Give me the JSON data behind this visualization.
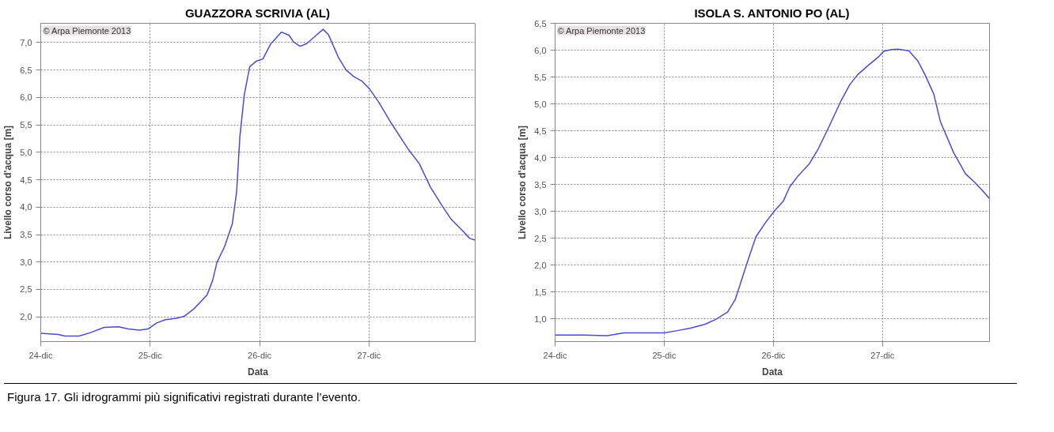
{
  "chart_data": [
    {
      "type": "line",
      "title": "GUAZZORA SCRIVIA (AL)",
      "xlabel": "Data",
      "ylabel": "Livello corso d'acqua [m]",
      "annotations": [
        "© Arpa Piemonte 2013",
        "Figura 17. Gli idrogrammi più significativi registrati durante l’evento."
      ],
      "xlim": [
        24,
        27.97
      ],
      "xticks": [
        {
          "value": 24,
          "label": "24-dic"
        },
        {
          "value": 25,
          "label": "25-dic"
        },
        {
          "value": 26,
          "label": "26-dic"
        },
        {
          "value": 27,
          "label": "27-dic"
        }
      ],
      "ylim": [
        1.55,
        7.35
      ],
      "yticks": [
        {
          "value": 2.0,
          "label": "2,0"
        },
        {
          "value": 2.5,
          "label": "2,5"
        },
        {
          "value": 3.0,
          "label": "3,0"
        },
        {
          "value": 3.5,
          "label": "3,5"
        },
        {
          "value": 4.0,
          "label": "4,0"
        },
        {
          "value": 4.5,
          "label": "4,5"
        },
        {
          "value": 5.0,
          "label": "5,0"
        },
        {
          "value": 5.5,
          "label": "5,5"
        },
        {
          "value": 6.0,
          "label": "6,0"
        },
        {
          "value": 6.5,
          "label": "6,5"
        },
        {
          "value": 7.0,
          "label": "7,0"
        }
      ],
      "grid": true,
      "marker": "none",
      "line_style": "solid",
      "series": [
        {
          "color": "#4a4ad8",
          "x": [
            24.0,
            24.16,
            24.22,
            24.35,
            24.45,
            24.58,
            24.71,
            24.8,
            24.9,
            24.98,
            25.06,
            25.14,
            25.23,
            25.31,
            25.39,
            25.45,
            25.52,
            25.57,
            25.61,
            25.68,
            25.75,
            25.79,
            25.82,
            25.86,
            25.91,
            25.97,
            26.03,
            26.1,
            26.2,
            26.27,
            26.31,
            26.37,
            26.43,
            26.51,
            26.58,
            26.63,
            26.72,
            26.79,
            26.86,
            26.94,
            27.01,
            27.09,
            27.2,
            27.36,
            27.46,
            27.56,
            27.66,
            27.75,
            27.85,
            27.92,
            27.97
          ],
          "values": [
            1.7,
            1.68,
            1.65,
            1.65,
            1.71,
            1.81,
            1.82,
            1.78,
            1.76,
            1.78,
            1.89,
            1.95,
            1.97,
            2.01,
            2.13,
            2.25,
            2.4,
            2.66,
            2.99,
            3.28,
            3.69,
            4.28,
            5.29,
            6.05,
            6.56,
            6.66,
            6.7,
            6.97,
            7.19,
            7.13,
            7.01,
            6.93,
            6.98,
            7.12,
            7.24,
            7.14,
            6.73,
            6.5,
            6.38,
            6.29,
            6.14,
            5.91,
            5.54,
            5.05,
            4.79,
            4.37,
            4.05,
            3.78,
            3.58,
            3.43,
            3.4
          ]
        }
      ]
    },
    {
      "type": "line",
      "title": "ISOLA S. ANTONIO PO (AL)",
      "xlabel": "Data",
      "ylabel": "Livello corso d'acqua [m]",
      "annotations": [
        "© Arpa Piemonte 2013"
      ],
      "xlim": [
        24,
        27.98
      ],
      "xticks": [
        {
          "value": 24,
          "label": "24-dic"
        },
        {
          "value": 25,
          "label": "25-dic"
        },
        {
          "value": 26,
          "label": "26-dic"
        },
        {
          "value": 27,
          "label": "27-dic"
        }
      ],
      "ylim": [
        0.58,
        6.5
      ],
      "yticks": [
        {
          "value": 1.0,
          "label": "1,0"
        },
        {
          "value": 1.5,
          "label": "1,5"
        },
        {
          "value": 2.0,
          "label": "2,0"
        },
        {
          "value": 2.5,
          "label": "2,5"
        },
        {
          "value": 3.0,
          "label": "3,0"
        },
        {
          "value": 3.5,
          "label": "3,5"
        },
        {
          "value": 4.0,
          "label": "4,0"
        },
        {
          "value": 4.5,
          "label": "4,5"
        },
        {
          "value": 5.0,
          "label": "5,0"
        },
        {
          "value": 5.5,
          "label": "5,5"
        },
        {
          "value": 6.0,
          "label": "6,0"
        },
        {
          "value": 6.5,
          "label": "6,5"
        }
      ],
      "grid": true,
      "marker": "none",
      "line_style": "solid",
      "series": [
        {
          "color": "#4a4ad8",
          "x": [
            24.0,
            24.14,
            24.27,
            24.48,
            24.63,
            24.82,
            25.0,
            25.11,
            25.24,
            25.37,
            25.47,
            25.58,
            25.65,
            25.76,
            25.84,
            25.93,
            26.01,
            26.09,
            26.15,
            26.23,
            26.33,
            26.41,
            26.51,
            26.62,
            26.7,
            26.77,
            26.87,
            26.96,
            27.01,
            27.08,
            27.14,
            27.24,
            27.32,
            27.39,
            27.47,
            27.53,
            27.65,
            27.76,
            27.84,
            27.91,
            27.98
          ],
          "values": [
            0.7,
            0.7,
            0.7,
            0.69,
            0.74,
            0.74,
            0.74,
            0.78,
            0.83,
            0.9,
            0.99,
            1.13,
            1.36,
            2.05,
            2.53,
            2.8,
            3.01,
            3.19,
            3.46,
            3.67,
            3.89,
            4.16,
            4.58,
            5.06,
            5.36,
            5.54,
            5.72,
            5.87,
            5.98,
            6.01,
            6.02,
            5.99,
            5.81,
            5.54,
            5.18,
            4.67,
            4.1,
            3.7,
            3.55,
            3.4,
            3.24
          ]
        }
      ]
    }
  ]
}
